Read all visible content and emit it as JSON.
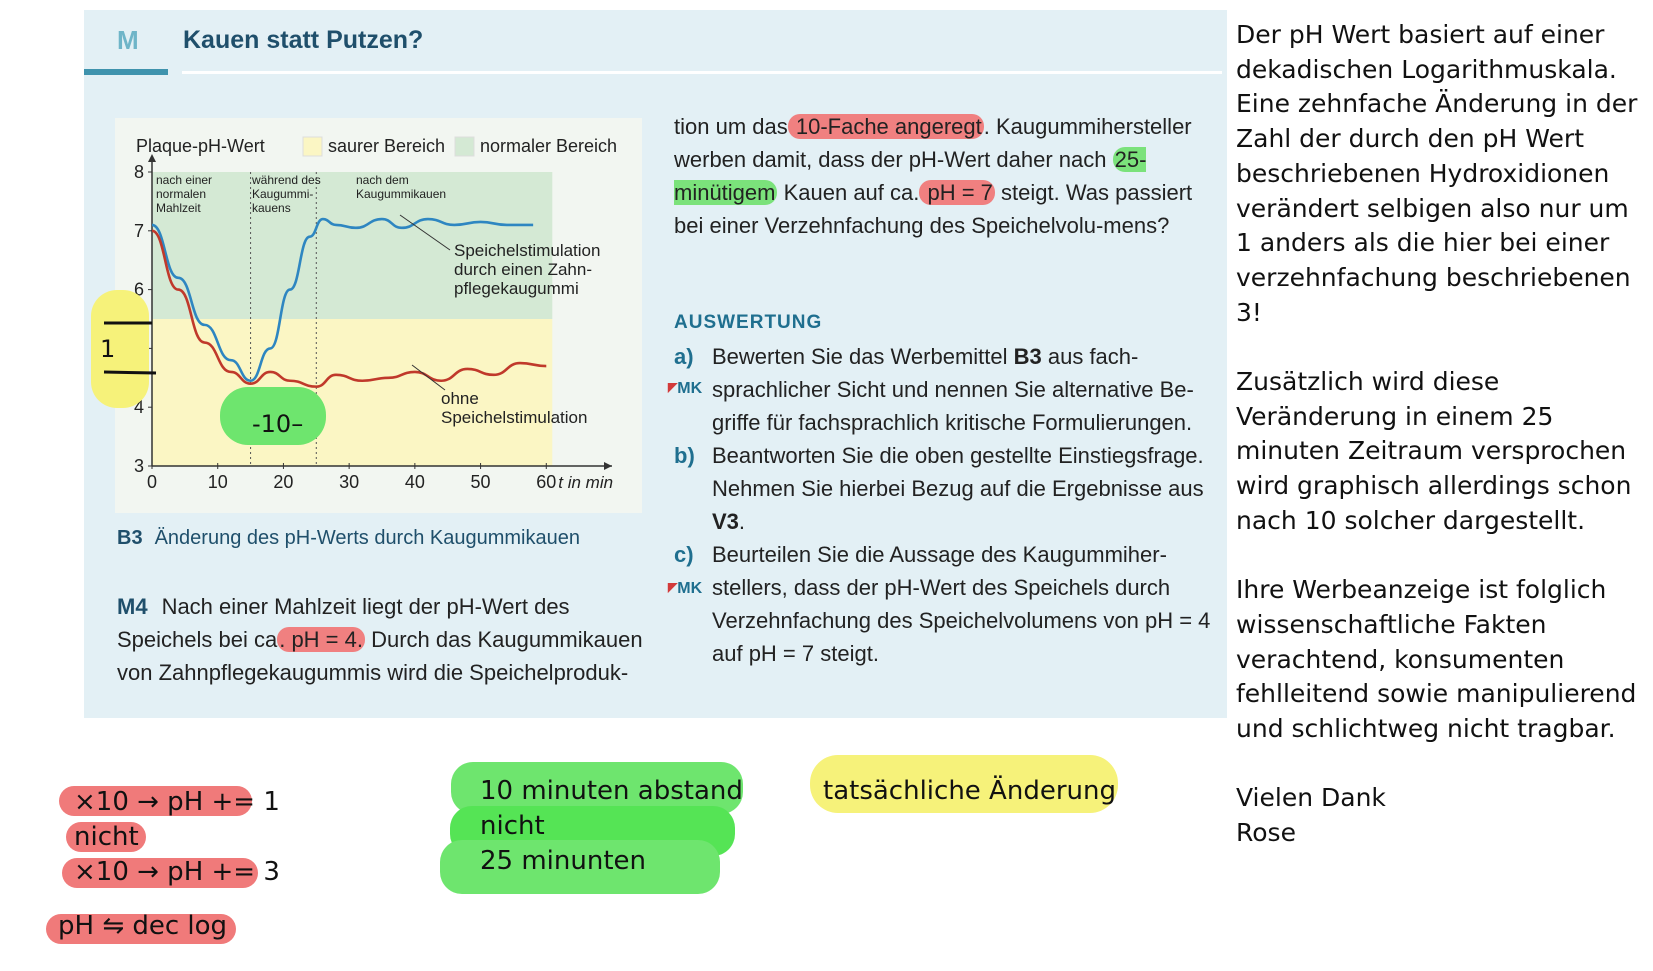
{
  "header": {
    "label": "M",
    "title": "Kauen statt Putzen?"
  },
  "chart_data": {
    "type": "line",
    "title": "Plaque-pH-Wert",
    "xlabel": "t in min",
    "ylabel": "Plaque-pH-Wert",
    "xlim": [
      0,
      70
    ],
    "ylim": [
      3,
      8
    ],
    "x_ticks": [
      "0",
      "10",
      "20",
      "30",
      "40",
      "50",
      "60"
    ],
    "y_ticks": [
      "3",
      "4",
      "5",
      "6",
      "7",
      "8"
    ],
    "legend": [
      {
        "name": "saurer Bereich",
        "color": "#fbf6c4"
      },
      {
        "name": "normaler Bereich",
        "color": "#d4e9d4"
      }
    ],
    "phase_labels": [
      {
        "text": "nach einer normalen Mahlzeit"
      },
      {
        "text": "während des Kaugummi-kauens"
      },
      {
        "text": "nach dem Kaugummikauen"
      }
    ],
    "series": [
      {
        "name": "Speichelstimulation durch einen Zahnpflegekaugummi",
        "color": "#2e86c1",
        "x": [
          0,
          4,
          8,
          12,
          15,
          18,
          21,
          24,
          26,
          28,
          31,
          35,
          38,
          42,
          46,
          50,
          54,
          58
        ],
        "y": [
          7.1,
          6.2,
          5.4,
          4.8,
          4.45,
          5.0,
          6.0,
          6.9,
          7.2,
          7.1,
          7.05,
          7.2,
          7.05,
          7.2,
          7.1,
          7.15,
          7.1,
          7.1
        ]
      },
      {
        "name": "ohne Speichelstimulation",
        "color": "#c0392b",
        "x": [
          0,
          4,
          8,
          12,
          15,
          18,
          21,
          25,
          28,
          32,
          36,
          40,
          44,
          48,
          52,
          56,
          60
        ],
        "y": [
          7.0,
          6.0,
          5.1,
          4.6,
          4.4,
          4.6,
          4.45,
          4.35,
          4.55,
          4.45,
          4.5,
          4.6,
          4.45,
          4.65,
          4.55,
          4.75,
          4.7
        ]
      }
    ],
    "grid": false
  },
  "chart_text": {
    "legend_title": "Plaque-pH-Wert",
    "phase1": [
      "nach einer",
      "normalen",
      "Mahlzeit"
    ],
    "phase2": [
      "während des",
      "Kaugummi-",
      "kauens"
    ],
    "phase3": [
      "nach dem",
      "Kaugummikauen"
    ],
    "label_blue": [
      "Speichelstimulation",
      "durch einen Zahn-",
      "pflegekaugummi"
    ],
    "label_red": [
      "ohne",
      "Speichelstimulation"
    ],
    "x_unit": "t in min"
  },
  "annotations_on_chart": {
    "one_label": "1",
    "ten_label": "-10–"
  },
  "caption": {
    "id": "B3",
    "text": "Änderung des pH-Werts durch Kaugummikauen"
  },
  "m4": {
    "id": "M4",
    "text_a": "Nach einer Mahlzeit liegt der pH-Wert des Speichels bei ca",
    "hl": ". pH = 4.",
    "text_b": " Durch das Kaugummikauen von Zahnpflegekaugummis wird die Speichelproduk-"
  },
  "col2": {
    "p1": "tion um das",
    "h1": " 10-Fache angeregt",
    "p2": ". Kaugummihersteller werben damit, dass der pH-Wert daher nach ",
    "h2": "25-minütigem",
    "p3": " Kauen auf ca.",
    "h3": " pH = 7",
    "p4": " steigt. Was passiert bei einer Verzehnfachung des Speichelvolu-mens?"
  },
  "auswertung": {
    "heading": "AUSWERTUNG",
    "a_letter": "a)",
    "a_text_1": "Bewerten Sie das Werbemittel ",
    "a_bold": "B3",
    "a_text_2": " aus fach-sprachlicher Sicht und nennen Sie alternative Be-griffe für fachsprachlich kritische Formulierungen.",
    "b_letter": "b)",
    "b_text_1": "Beantworten Sie die oben gestellte Einstiegsfrage. Nehmen Sie hierbei Bezug auf die Ergebnisse aus ",
    "b_bold": "V3",
    "b_text_2": ".",
    "c_letter": "c)",
    "c_text": "Beurteilen Sie die Aussage des Kaugummiher-stellers, dass der pH-Wert des Speichels durch Verzehnfachung des Speichelvolumens von pH = 4 auf pH = 7 steigt.",
    "mk": "MK"
  },
  "right_note": {
    "p1": "Der pH Wert basiert auf einer dekadischen Logarithmuskala. Eine zehnfache Änderung in der Zahl der durch den pH Wert beschriebenen Hydroxidionen verändert selbigen also nur um 1 anders als die hier bei einer verzehnfachung beschriebenen 3!",
    "p2": "Zusätzlich wird diese Veränderung in einem 25 minuten Zeitraum versprochen wird graphisch allerdings schon nach 10 solcher dargestellt.",
    "p3": "Ihre Werbeanzeige ist folglich wissenschaftliche Fakten verachtend, konsumenten fehlleitend sowie manipulierend und schlichtweg nicht tragbar.",
    "p4_line1": "Vielen Dank",
    "p4_line2": "Rose"
  },
  "bottom_notes": {
    "red1": "×10 → pH += 1",
    "red2": "nicht",
    "red3": "×10 → pH += 3",
    "red4": "pH ⇋ dec log",
    "green1": "10 minuten abstand",
    "green2": "nicht",
    "green3": "25 minunten",
    "yellow1": "tatsächliche Änderung"
  },
  "colors": {
    "highlight_red": "#f08080",
    "highlight_green": "#6ee56e",
    "highlight_yellow": "#f6f27a",
    "panel_bg": "#e3f0f5",
    "accent": "#1f6f8f"
  }
}
